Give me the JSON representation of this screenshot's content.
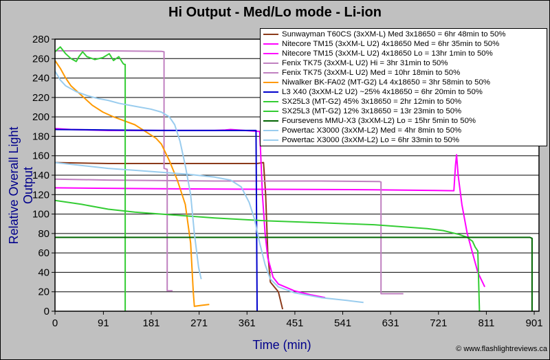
{
  "chart_data": {
    "type": "line",
    "title": "Hi Output - Med/Lo mode - Li-ion",
    "xlabel": "Time (min)",
    "ylabel": "Relative Overall Light Output",
    "xlim": [
      0,
      910
    ],
    "ylim": [
      0,
      280
    ],
    "x_ticks": [
      "0",
      "91",
      "181",
      "271",
      "361",
      "451",
      "541",
      "631",
      "721",
      "811",
      "901"
    ],
    "y_ticks": [
      "0",
      "20",
      "40",
      "60",
      "80",
      "100",
      "120",
      "140",
      "160",
      "180",
      "200",
      "220",
      "240",
      "260",
      "280"
    ],
    "grid": "horizontal",
    "legend_position": "top-right",
    "series": [
      {
        "name": "Sunwayman T60CS (3xXM-L) Med 3x18650 = 6hr 48min to 50%",
        "color": "#8b3a1a",
        "points": [
          [
            0,
            153
          ],
          [
            100,
            152
          ],
          [
            200,
            152
          ],
          [
            300,
            152
          ],
          [
            380,
            152
          ],
          [
            392,
            153
          ],
          [
            396,
            120
          ],
          [
            400,
            60
          ],
          [
            405,
            30
          ],
          [
            420,
            20
          ],
          [
            428,
            2
          ]
        ]
      },
      {
        "name": "Nitecore TM15 (3xXM-L U2) 4x18650 Med = 6hr 35min to 50%",
        "color": "#ff00ff",
        "points": [
          [
            0,
            188
          ],
          [
            30,
            187
          ],
          [
            100,
            186
          ],
          [
            200,
            186
          ],
          [
            300,
            186
          ],
          [
            320,
            186.5
          ],
          [
            330,
            187
          ],
          [
            385,
            185
          ],
          [
            390,
            120
          ],
          [
            395,
            80
          ],
          [
            400,
            55
          ],
          [
            410,
            35
          ],
          [
            420,
            28
          ],
          [
            450,
            21
          ],
          [
            480,
            17
          ],
          [
            508,
            14
          ]
        ]
      },
      {
        "name": "Nitecore TM15 (3xXM-L U2) 4x18650 Lo = 13hr 1min to 50%",
        "color": "#ff00ff",
        "points": [
          [
            0,
            127
          ],
          [
            200,
            126
          ],
          [
            400,
            125.5
          ],
          [
            600,
            125
          ],
          [
            750,
            124
          ],
          [
            753,
            150
          ],
          [
            755,
            161
          ],
          [
            758,
            140
          ],
          [
            765,
            110
          ],
          [
            775,
            80
          ],
          [
            785,
            60
          ],
          [
            795,
            40
          ],
          [
            808,
            25
          ]
        ]
      },
      {
        "name": "Fenix TK75 (3xXM-L U2) Hi = 3hr 31min to 50%",
        "color": "#c080c0",
        "points": [
          [
            0,
            268
          ],
          [
            100,
            268
          ],
          [
            200,
            267.5
          ],
          [
            205,
            267
          ],
          [
            205,
            147
          ],
          [
            211,
            146
          ],
          [
            211,
            21
          ],
          [
            221,
            21
          ]
        ]
      },
      {
        "name": "Fenix TK75 (3xXM-L U2) Med = 10hr 18min to 50%",
        "color": "#c080c0",
        "points": [
          [
            0,
            136
          ],
          [
            100,
            135
          ],
          [
            300,
            134
          ],
          [
            500,
            134
          ],
          [
            610,
            133.5
          ],
          [
            613,
            133
          ],
          [
            613,
            18
          ],
          [
            655,
            18
          ]
        ]
      },
      {
        "name": "Niwalker BK-FA02 (MT-G2) L4 4x18650 = 3hr 58min to 50%",
        "color": "#ff9900",
        "points": [
          [
            0,
            258
          ],
          [
            10,
            250
          ],
          [
            20,
            240
          ],
          [
            30,
            232
          ],
          [
            50,
            222
          ],
          [
            70,
            212
          ],
          [
            90,
            205
          ],
          [
            110,
            200
          ],
          [
            150,
            192
          ],
          [
            170,
            185
          ],
          [
            190,
            178
          ],
          [
            200,
            172
          ],
          [
            215,
            155
          ],
          [
            230,
            135
          ],
          [
            245,
            110
          ],
          [
            255,
            70
          ],
          [
            260,
            20
          ],
          [
            262,
            5
          ],
          [
            275,
            6
          ],
          [
            290,
            7
          ]
        ]
      },
      {
        "name": "L3 X40 (3xXM-L2 U2) ~25% 4x18650 = 6hr 20min to 50%",
        "color": "#0000cc",
        "points": [
          [
            0,
            187
          ],
          [
            100,
            186.5
          ],
          [
            200,
            186
          ],
          [
            300,
            186
          ],
          [
            378,
            186
          ],
          [
            380,
            0
          ]
        ]
      },
      {
        "name": "SX25L3 (MT-G2) 45% 3x18650 = 2hr 12min to 50%",
        "color": "#33cc33",
        "points": [
          [
            0,
            267
          ],
          [
            10,
            272
          ],
          [
            20,
            265
          ],
          [
            30,
            260
          ],
          [
            40,
            257
          ],
          [
            45,
            262
          ],
          [
            52,
            267
          ],
          [
            60,
            262
          ],
          [
            75,
            259
          ],
          [
            90,
            261
          ],
          [
            102,
            265
          ],
          [
            110,
            258
          ],
          [
            120,
            262
          ],
          [
            128,
            255
          ],
          [
            130,
            254
          ],
          [
            132,
            254
          ],
          [
            132,
            0
          ]
        ]
      },
      {
        "name": "SX25L3 (MT-G2) 12% 3x18650 = 13r 23min to 50%",
        "color": "#33cc33",
        "points": [
          [
            0,
            114
          ],
          [
            50,
            110
          ],
          [
            100,
            105
          ],
          [
            150,
            102
          ],
          [
            200,
            100
          ],
          [
            300,
            96
          ],
          [
            400,
            93
          ],
          [
            500,
            91
          ],
          [
            600,
            89
          ],
          [
            700,
            85
          ],
          [
            730,
            83
          ],
          [
            760,
            79
          ],
          [
            775,
            76
          ],
          [
            785,
            72
          ],
          [
            790,
            66
          ],
          [
            795,
            62
          ],
          [
            798,
            0
          ]
        ]
      },
      {
        "name": "Foursevens MMU-X3 (3xXM-L2) Lo = 15hr 5min to 50%",
        "color": "#006400",
        "points": [
          [
            0,
            76
          ],
          [
            200,
            76
          ],
          [
            400,
            76
          ],
          [
            600,
            76
          ],
          [
            800,
            76
          ],
          [
            893,
            76
          ],
          [
            897,
            75
          ],
          [
            897,
            0
          ]
        ]
      },
      {
        "name": "Powertac X3000 (3xXM-L2) Med = 4hr 8min to 50%",
        "color": "#99ccee",
        "points": [
          [
            0,
            247
          ],
          [
            10,
            238
          ],
          [
            20,
            232
          ],
          [
            40,
            226
          ],
          [
            60,
            222
          ],
          [
            80,
            219
          ],
          [
            100,
            217
          ],
          [
            120,
            214
          ],
          [
            150,
            211
          ],
          [
            180,
            208
          ],
          [
            200,
            205
          ],
          [
            215,
            200
          ],
          [
            225,
            192
          ],
          [
            235,
            175
          ],
          [
            245,
            150
          ],
          [
            255,
            120
          ],
          [
            262,
            80
          ],
          [
            270,
            45
          ],
          [
            275,
            33
          ]
        ]
      },
      {
        "name": "Powertac X3000 (3xXM-L2) Lo = 6hr 33min to 50%",
        "color": "#99ccee",
        "points": [
          [
            0,
            153
          ],
          [
            50,
            150
          ],
          [
            100,
            147
          ],
          [
            150,
            145
          ],
          [
            200,
            143
          ],
          [
            250,
            141
          ],
          [
            300,
            138
          ],
          [
            330,
            135
          ],
          [
            350,
            128
          ],
          [
            365,
            112
          ],
          [
            375,
            95
          ],
          [
            385,
            70
          ],
          [
            395,
            48
          ],
          [
            405,
            33
          ],
          [
            420,
            25
          ],
          [
            450,
            19
          ],
          [
            500,
            14
          ],
          [
            550,
            11
          ],
          [
            580,
            9
          ]
        ]
      }
    ]
  },
  "footer": {
    "copyright": "© www.flashlightreviews.ca"
  }
}
